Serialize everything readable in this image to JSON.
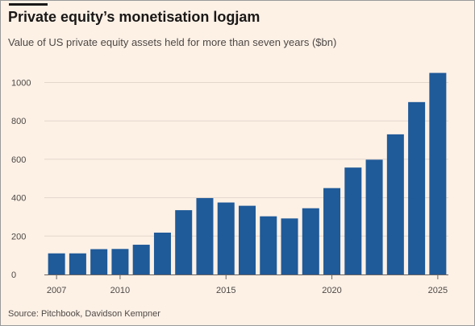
{
  "title": "Private equity’s monetisation logjam",
  "subtitle": "Value of US private equity assets held for more than seven years ($bn)",
  "source": "Source: Pitchbook, Davidson Kempner",
  "colors": {
    "bar": "#1f5a99",
    "grid": "#e3d7cc",
    "axis": "#6b6460",
    "background": "#fdf1e6"
  },
  "chart_data": {
    "type": "bar",
    "title": "Private equity’s monetisation logjam",
    "subtitle": "Value of US private equity assets held for more than seven years ($bn)",
    "xlabel": "",
    "ylabel": "",
    "ylim": [
      0,
      1050
    ],
    "yticks": [
      0,
      200,
      400,
      600,
      800,
      1000
    ],
    "xtick_labels": [
      "2007",
      "2010",
      "2015",
      "2020",
      "2025"
    ],
    "grid": true,
    "categories": [
      2007,
      2008,
      2009,
      2010,
      2011,
      2012,
      2013,
      2014,
      2015,
      2016,
      2017,
      2018,
      2019,
      2020,
      2021,
      2022,
      2023,
      2024,
      2025
    ],
    "values": [
      110,
      110,
      132,
      133,
      155,
      218,
      335,
      398,
      375,
      358,
      303,
      292,
      345,
      450,
      557,
      598,
      730,
      898,
      1050
    ]
  }
}
